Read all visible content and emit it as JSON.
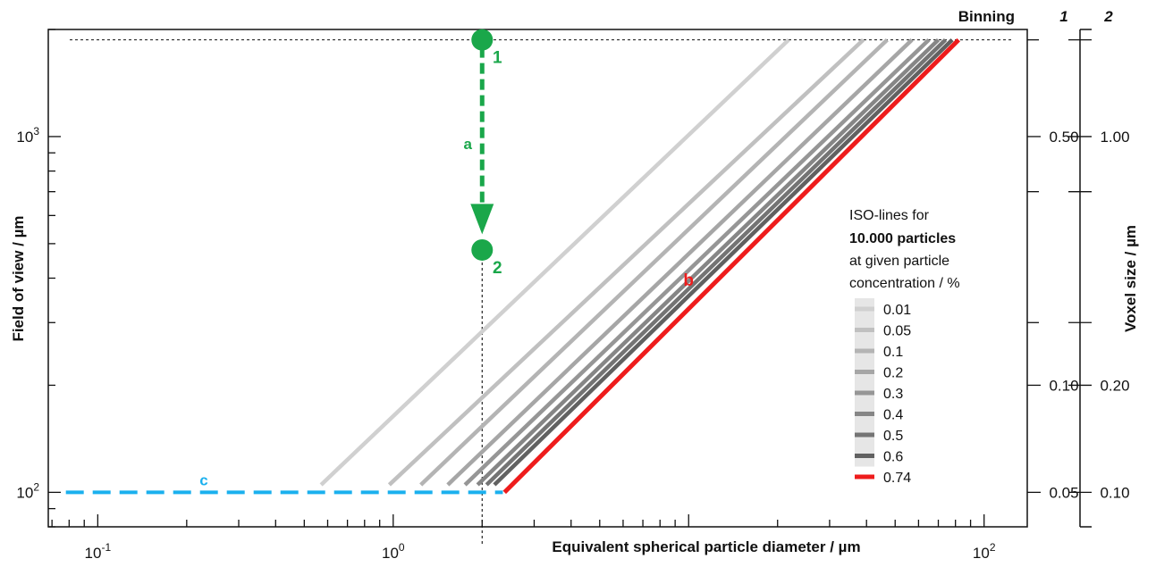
{
  "chart_data": {
    "type": "line",
    "xlabel": "Equivalent spherical particle diameter / µm",
    "ylabel": "Field of view / µm",
    "y2label": "Voxel size / µm",
    "x_scale": "log",
    "y_scale": "log",
    "xlim": [
      0.068,
      140
    ],
    "ylim": [
      80,
      2000
    ],
    "x_ticks": [
      {
        "base": "10",
        "exp": "-1",
        "value": 0.1
      },
      {
        "base": "10",
        "exp": "0",
        "value": 1
      },
      {
        "base": "10",
        "exp": "2",
        "value": 100
      }
    ],
    "y_ticks": [
      {
        "base": "10",
        "exp": "3",
        "value": 1000
      },
      {
        "base": "10",
        "exp": "2",
        "value": 100
      }
    ],
    "binning_label": "Binning",
    "binning_columns": [
      "1",
      "2"
    ],
    "voxel_ticks": [
      {
        "fov": 1000,
        "binning_1": "0.50",
        "binning_2": "1.00"
      },
      {
        "fov": 200,
        "binning_1": "0.10",
        "binning_2": "0.20"
      },
      {
        "fov": 100,
        "binning_1": "0.05",
        "binning_2": "0.10"
      }
    ],
    "legend": {
      "title_line1": "ISO-lines for",
      "title_line2": "10.000 particles",
      "title_line3": "at given particle",
      "title_line4": "concentration / %",
      "placement": "right"
    },
    "series": [
      {
        "name": "0.01",
        "color": "#d0d0d0",
        "x": [
          0.57,
          21.8
        ],
        "y": [
          105,
          1870
        ]
      },
      {
        "name": "0.05",
        "color": "#c0c0c0",
        "x": [
          0.97,
          39
        ],
        "y": [
          105,
          1870
        ]
      },
      {
        "name": "0.1",
        "color": "#b4b4b4",
        "x": [
          1.24,
          47
        ],
        "y": [
          105,
          1870
        ]
      },
      {
        "name": "0.2",
        "color": "#a6a6a6",
        "x": [
          1.53,
          57
        ],
        "y": [
          105,
          1870
        ]
      },
      {
        "name": "0.3",
        "color": "#969696",
        "x": [
          1.75,
          65
        ],
        "y": [
          105,
          1870
        ]
      },
      {
        "name": "0.4",
        "color": "#868686",
        "x": [
          1.93,
          70
        ],
        "y": [
          105,
          1870
        ]
      },
      {
        "name": "0.5",
        "color": "#747474",
        "x": [
          2.07,
          74
        ],
        "y": [
          105,
          1870
        ]
      },
      {
        "name": "0.6",
        "color": "#616161",
        "x": [
          2.2,
          78
        ],
        "y": [
          105,
          1870
        ]
      },
      {
        "name": "0.74",
        "color": "#ee1c1c",
        "x": [
          2.38,
          82
        ],
        "y": [
          100,
          1870
        ]
      }
    ],
    "annotations": {
      "a": {
        "label": "a",
        "color": "#1aa74a",
        "x": 2.0,
        "y_from": 1870,
        "y_to": 550
      },
      "b": {
        "label": "b",
        "color": "#ee1c1c",
        "x": 9.0,
        "y": 370
      },
      "c": {
        "label": "c",
        "color": "#1ab0ee",
        "x_from": 0.078,
        "x_to": 2.35,
        "y": 100
      },
      "point_1": {
        "label": "1",
        "color": "#1aa74a",
        "x": 2.0,
        "y": 1870
      },
      "point_2": {
        "label": "2",
        "color": "#1aa74a",
        "x": 2.0,
        "y": 480
      },
      "ref_lines": {
        "y": 1870,
        "x": 2.0
      }
    }
  }
}
